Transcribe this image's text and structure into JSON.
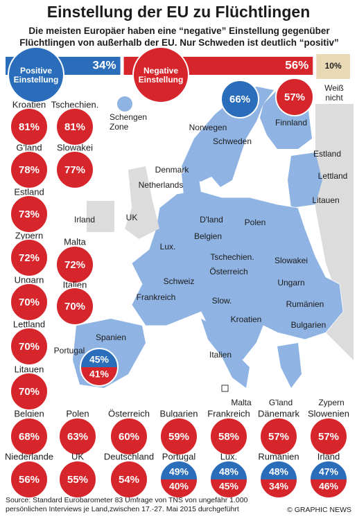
{
  "header": {
    "title": "Einstellung der EU zu Flüchtlingen",
    "subtitle": "Die meisten Europäer haben eine “negative” Einstellung gegenüber Flüchtlingen von außerhalb der EU. Nur Schweden ist deutlich “positiv”"
  },
  "summary": {
    "positive": {
      "label": "Positive Einstellung",
      "value": 34,
      "value_label": "34%"
    },
    "negative": {
      "label": "Negative Einstellung",
      "value": 56,
      "value_label": "56%"
    },
    "unknown": {
      "label": "Weiß nicht",
      "value": 10,
      "value_label": "10%"
    }
  },
  "legend": {
    "schengen": "Schengen Zone"
  },
  "map_labels": [
    "Norwegen",
    "Schweden",
    "Finnland",
    "Estland",
    "Lettland",
    "Litauen",
    "Denmark",
    "Netherlands",
    "UK",
    "Irland",
    "D'land",
    "Belgien",
    "Polen",
    "Lux.",
    "Tschechien.",
    "Slowakei",
    "Österreich",
    "Schweiz",
    "Ungarn",
    "Frankreich",
    "Slow.",
    "Rumänien",
    "Kroatien",
    "Bulgarien",
    "Spanien",
    "Portugal",
    "Italien",
    "Malta",
    "G'land",
    "Zypern"
  ],
  "ratings": [
    {
      "country": "Kroatien",
      "negative": "81%"
    },
    {
      "country": "Tschechien.",
      "negative": "81%"
    },
    {
      "country": "G'land",
      "negative": "78%"
    },
    {
      "country": "Slowakei",
      "negative": "77%"
    },
    {
      "country": "Estland",
      "negative": "73%"
    },
    {
      "country": "Zypern",
      "negative": "72%"
    },
    {
      "country": "Malta",
      "negative": "72%"
    },
    {
      "country": "Ungarn",
      "negative": "70%"
    },
    {
      "country": "Italien",
      "negative": "70%"
    },
    {
      "country": "Lettland",
      "negative": "70%"
    },
    {
      "country": "Litauen",
      "negative": "70%"
    },
    {
      "positive": "66%"
    },
    {
      "negative": "57%"
    },
    {
      "positive": "45%",
      "negative": "41%"
    },
    {
      "country": "Belgien",
      "negative": "68%"
    },
    {
      "country": "Polen",
      "negative": "63%"
    },
    {
      "country": "Österreich",
      "negative": "60%"
    },
    {
      "country": "Bulgarien",
      "negative": "59%"
    },
    {
      "country": "Frankreich",
      "negative": "58%"
    },
    {
      "country": "Dänemark",
      "negative": "57%"
    },
    {
      "country": "Slowenien",
      "negative": "57%"
    },
    {
      "country": "Niederlande",
      "negative": "56%"
    },
    {
      "country": "UK",
      "negative": "55%"
    },
    {
      "country": "Deutschland",
      "negative": "54%"
    },
    {
      "country": "Portugal",
      "positive": "49%",
      "negative": "40%"
    },
    {
      "country": "Lux.",
      "positive": "48%",
      "negative": "45%"
    },
    {
      "country": "Rumänien",
      "positive": "48%",
      "negative": "34%"
    },
    {
      "country": "Irland",
      "positive": "47%",
      "negative": "46%"
    }
  ],
  "footer": {
    "source": "Source: Standard Eurobarometer 83 Umfrage von TNS von ungefähr 1.000 persönlichen Interviews je Land,zwischen 17.-27. Mai 2015 durchgeführt",
    "credit": "© GRAPHIC NEWS"
  }
}
